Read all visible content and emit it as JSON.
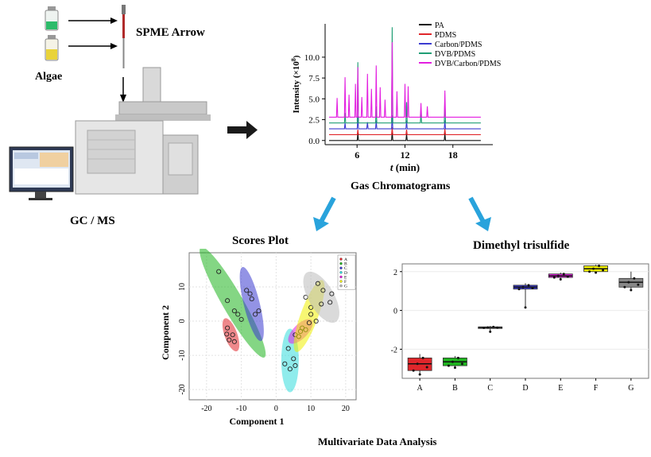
{
  "workflow": {
    "algae_label": "Algae",
    "spme_label": "SPME Arrow",
    "instrument_label": "GC / MS",
    "chromatogram_caption": "Gas Chromatograms",
    "scores_title": "Scores Plot",
    "dmts_title": "Dimethyl trisulfide",
    "bottom_caption": "Multivariate Data Analysis"
  },
  "colors": {
    "arrow_blue": "#29a3dc",
    "PA": "#111111",
    "PDMS": "#e0262b",
    "CarbonPDMS": "#3b3bd0",
    "DVBPDMS": "#1f9e74",
    "DVBCarbonPDMS": "#e31fe0"
  },
  "chart_data": [
    {
      "type": "line",
      "title": "Gas Chromatograms",
      "xlabel_var": "t",
      "xlabel_unit": "(min)",
      "ylabel": "Intensity (×10",
      "ylabel_exp": "8",
      "ylabel_close": ")",
      "x_ticks": [
        "6",
        "12",
        "18"
      ],
      "y_ticks": [
        "0.0",
        "2.5",
        "5.0",
        "7.5",
        "10.0"
      ],
      "xlim": [
        2,
        23
      ],
      "ylim": [
        -0.5,
        14
      ],
      "series": [
        {
          "name": "PA",
          "color": "#111111",
          "offset": 0.0,
          "peaks": [
            [
              6.1,
              0.9
            ],
            [
              10.4,
              1.1
            ],
            [
              12.2,
              0.8
            ],
            [
              17.0,
              0.9
            ]
          ]
        },
        {
          "name": "PDMS",
          "color": "#e0262b",
          "offset": 0.7,
          "peaks": [
            [
              6.1,
              0.6
            ],
            [
              10.4,
              0.9
            ],
            [
              12.2,
              0.6
            ],
            [
              17.0,
              0.7
            ]
          ]
        },
        {
          "name": "Carbon/PDMS",
          "color": "#3b3bd0",
          "offset": 1.4,
          "peaks": [
            [
              4.5,
              0.7
            ],
            [
              6.1,
              1.5
            ],
            [
              7.3,
              0.8
            ],
            [
              8.4,
              1.0
            ],
            [
              10.4,
              1.6
            ],
            [
              12.2,
              1.0
            ],
            [
              17.0,
              1.0
            ]
          ]
        },
        {
          "name": "DVB/PDMS",
          "color": "#1f9e74",
          "offset": 2.1,
          "peaks": [
            [
              4.5,
              1.2
            ],
            [
              6.1,
              7.3
            ],
            [
              8.4,
              2.0
            ],
            [
              10.4,
              11.5
            ],
            [
              12.2,
              2.5
            ],
            [
              14.0,
              1.2
            ],
            [
              17.0,
              2.8
            ]
          ]
        },
        {
          "name": "DVB/Carbon/PDMS",
          "color": "#e31fe0",
          "offset": 2.8,
          "peaks": [
            [
              3.5,
              2.3
            ],
            [
              4.5,
              4.8
            ],
            [
              5.0,
              2.7
            ],
            [
              5.8,
              4.0
            ],
            [
              6.1,
              6.0
            ],
            [
              6.6,
              2.4
            ],
            [
              7.3,
              5.2
            ],
            [
              7.8,
              3.4
            ],
            [
              8.4,
              6.2
            ],
            [
              8.9,
              3.6
            ],
            [
              9.5,
              2.1
            ],
            [
              10.4,
              9.0
            ],
            [
              11.0,
              3.1
            ],
            [
              12.0,
              4.0
            ],
            [
              12.4,
              3.7
            ],
            [
              14.0,
              1.7
            ],
            [
              14.8,
              1.3
            ],
            [
              17.0,
              3.2
            ]
          ]
        }
      ]
    },
    {
      "type": "scatter",
      "title": "Scores Plot",
      "xlabel": "Component 1",
      "ylabel": "Component 2",
      "xlim": [
        -25,
        23
      ],
      "ylim": [
        -23,
        20
      ],
      "x_ticks": [
        "-20",
        "-10",
        "0",
        "10",
        "20"
      ],
      "y_ticks": [
        "-20",
        "-10",
        "0",
        "10"
      ],
      "groups": [
        {
          "name": "A",
          "color": "#e0262b",
          "center": [
            -13,
            -4
          ],
          "points": [
            [
              -14,
              -2
            ],
            [
              -12.5,
              -4
            ],
            [
              -13.5,
              -5.5
            ],
            [
              -12,
              -6
            ],
            [
              -14.2,
              -3.8
            ]
          ]
        },
        {
          "name": "B",
          "color": "#1fb51f",
          "center": [
            -12.5,
            5.5
          ],
          "points": [
            [
              -16.5,
              14.5
            ],
            [
              -14,
              6
            ],
            [
              -12,
              3
            ],
            [
              -11,
              2
            ],
            [
              -10,
              0.5
            ]
          ]
        },
        {
          "name": "C",
          "color": "#3b3bd0",
          "center": [
            -7,
            5
          ],
          "points": [
            [
              -8.5,
              9
            ],
            [
              -7.5,
              8
            ],
            [
              -6,
              2
            ],
            [
              -5,
              3
            ],
            [
              -7,
              6.5
            ]
          ]
        },
        {
          "name": "D",
          "color": "#33dddd",
          "center": [
            4,
            -11.5
          ],
          "points": [
            [
              3.5,
              -8
            ],
            [
              5,
              -11
            ],
            [
              2.5,
              -12.5
            ],
            [
              4,
              -14
            ],
            [
              5.5,
              -13
            ]
          ]
        },
        {
          "name": "E",
          "color": "#e31fe0",
          "center": [
            7,
            -3
          ],
          "points": [
            [
              5.5,
              -4
            ],
            [
              7,
              -3
            ],
            [
              8.5,
              -2.5
            ],
            [
              6.5,
              -4.5
            ],
            [
              7.5,
              -2
            ]
          ]
        },
        {
          "name": "F",
          "color": "#f0f000",
          "center": [
            9.5,
            1.5
          ],
          "points": [
            [
              8.5,
              7
            ],
            [
              10,
              2
            ],
            [
              11.5,
              0
            ],
            [
              9.5,
              -0.5
            ],
            [
              10,
              4
            ]
          ]
        },
        {
          "name": "G",
          "color": "#bbbbbb",
          "center": [
            13,
            7
          ],
          "points": [
            [
              12,
              11
            ],
            [
              13.5,
              9
            ],
            [
              16,
              8
            ],
            [
              13,
              5
            ],
            [
              15.5,
              5.5
            ]
          ]
        }
      ],
      "legend": [
        "A",
        "B",
        "C",
        "D",
        "E",
        "F",
        "G"
      ],
      "legend_position": "top-right"
    },
    {
      "type": "box",
      "title": "Dimethyl trisulfide",
      "categories": [
        "A",
        "B",
        "C",
        "D",
        "E",
        "F",
        "G"
      ],
      "ylim": [
        -3.5,
        2.4
      ],
      "y_ticks": [
        "2",
        "0",
        "-2"
      ],
      "boxes": [
        {
          "name": "A",
          "color": "#e0262b",
          "min": -3.3,
          "q1": -3.1,
          "median": -2.75,
          "q3": -2.45,
          "max": -2.25
        },
        {
          "name": "B",
          "color": "#1fb51f",
          "min": -2.95,
          "q1": -2.85,
          "median": -2.65,
          "q3": -2.45,
          "max": -2.35
        },
        {
          "name": "C",
          "color": "#e0e0e0",
          "min": -1.1,
          "q1": -0.9,
          "median": -0.88,
          "q3": -0.85,
          "max": -0.8
        },
        {
          "name": "D",
          "color": "#3b3bd0",
          "min": 0.15,
          "q1": 1.1,
          "median": 1.2,
          "q3": 1.3,
          "max": 1.4
        },
        {
          "name": "E",
          "color": "#e31fe0",
          "min": 1.6,
          "q1": 1.7,
          "median": 1.78,
          "q3": 1.88,
          "max": 1.95
        },
        {
          "name": "F",
          "color": "#f0f000",
          "min": 1.95,
          "q1": 2.0,
          "median": 2.15,
          "q3": 2.3,
          "max": 2.35
        },
        {
          "name": "G",
          "color": "#888888",
          "min": 1.05,
          "q1": 1.2,
          "median": 1.45,
          "q3": 1.65,
          "max": 2.0
        }
      ]
    }
  ]
}
